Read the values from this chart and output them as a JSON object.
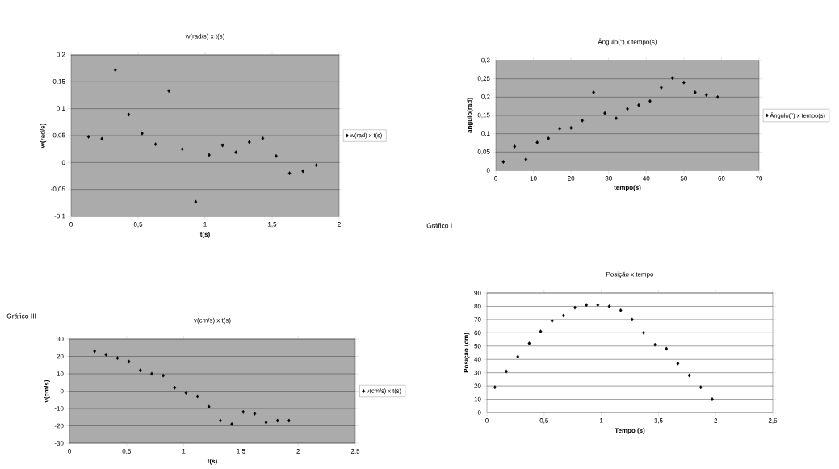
{
  "chart_data": [
    {
      "type": "scatter",
      "title": "w(rad/s) x t(s)",
      "xlabel": "t(s)",
      "ylabel": "w(rad/s)",
      "x": [
        0.13,
        0.23,
        0.33,
        0.43,
        0.53,
        0.63,
        0.73,
        0.83,
        0.93,
        1.03,
        1.13,
        1.23,
        1.33,
        1.43,
        1.53,
        1.63,
        1.73,
        1.83
      ],
      "series": [
        {
          "name": "w(rad) x t(s)",
          "color": "#000000",
          "values": [
            0.048,
            0.044,
            0.172,
            0.089,
            0.054,
            0.034,
            0.133,
            0.025,
            -0.073,
            0.014,
            0.032,
            0.019,
            0.038,
            0.045,
            0.012,
            -0.02,
            -0.016,
            -0.005
          ]
        }
      ],
      "xlim": [
        0,
        2
      ],
      "ylim": [
        -0.1,
        0.2
      ],
      "xticks": [
        0,
        {
          "value": 0.5,
          "label": "0,5"
        },
        1,
        {
          "value": 1.5,
          "label": "1,5"
        },
        2
      ],
      "yticks": [
        {
          "value": -0.1,
          "label": "-0,1"
        },
        {
          "value": -0.05,
          "label": "-0,05"
        },
        0,
        {
          "value": 0.05,
          "label": "0,05"
        },
        {
          "value": 0.1,
          "label": "0,1"
        },
        {
          "value": 0.15,
          "label": "0,15"
        },
        {
          "value": 0.2,
          "label": "0,2"
        }
      ],
      "grid": "y",
      "legend": "right",
      "marker": "diamond"
    },
    {
      "type": "scatter",
      "title": "Ângulo(°) x tempo(s)",
      "xlabel": "tempo(s)",
      "ylabel": "angulo(rad)",
      "x": [
        2,
        5,
        8,
        11,
        14,
        17,
        20,
        23,
        26,
        29,
        32,
        35,
        38,
        41,
        44,
        47,
        50,
        53,
        56,
        59
      ],
      "series": [
        {
          "name": "Ângulo(°) x tempo(s)",
          "color": "#000000",
          "values": [
            0.023,
            0.065,
            0.03,
            0.076,
            0.087,
            0.114,
            0.116,
            0.136,
            0.213,
            0.156,
            0.142,
            0.168,
            0.178,
            0.189,
            0.226,
            0.252,
            0.24,
            0.213,
            0.206,
            0.2
          ]
        }
      ],
      "xlim": [
        0,
        70
      ],
      "ylim": [
        0,
        0.3
      ],
      "xticks": [
        0,
        10,
        20,
        30,
        40,
        50,
        60,
        70
      ],
      "yticks": [
        0,
        {
          "value": 0.05,
          "label": "0,05"
        },
        {
          "value": 0.1,
          "label": "0,1"
        },
        {
          "value": 0.15,
          "label": "0,15"
        },
        {
          "value": 0.2,
          "label": "0,2"
        },
        {
          "value": 0.25,
          "label": "0,25"
        },
        {
          "value": 0.3,
          "label": "0,3"
        }
      ],
      "grid": "y",
      "legend": "right",
      "marker": "diamond"
    },
    {
      "type": "scatter",
      "title": "v(cm/s) x t(s)",
      "xlabel": "t(s)",
      "ylabel": "v(cm/s)",
      "annotations": [
        "Gráfico III"
      ],
      "x": [
        0.22,
        0.32,
        0.42,
        0.52,
        0.62,
        0.72,
        0.82,
        0.92,
        1.02,
        1.12,
        1.22,
        1.32,
        1.42,
        1.52,
        1.62,
        1.72,
        1.82,
        1.92
      ],
      "series": [
        {
          "name": "v(cm/s) x t(s)",
          "color": "#000000",
          "values": [
            23,
            21,
            19,
            17,
            12,
            10,
            9,
            2,
            -1,
            -3,
            -9,
            -17,
            -19,
            -12,
            -13,
            -18,
            -17,
            -17
          ]
        }
      ],
      "xlim": [
        0,
        2.5
      ],
      "ylim": [
        -30,
        30
      ],
      "xticks": [
        0,
        {
          "value": 0.5,
          "label": "0,5"
        },
        1,
        {
          "value": 1.5,
          "label": "1,5"
        },
        2,
        {
          "value": 2.5,
          "label": "2,5"
        }
      ],
      "yticks": [
        -30,
        -20,
        -10,
        0,
        10,
        20,
        30
      ],
      "grid": "y",
      "legend": "right",
      "marker": "diamond"
    },
    {
      "type": "scatter",
      "title": "Posição x tempo",
      "xlabel": "Tempo (s)",
      "ylabel": "Posição (cm)",
      "annotations": [
        "Gráfico I"
      ],
      "x": [
        0.07,
        0.17,
        0.27,
        0.37,
        0.47,
        0.57,
        0.67,
        0.77,
        0.87,
        0.97,
        1.07,
        1.17,
        1.27,
        1.37,
        1.47,
        1.57,
        1.67,
        1.77,
        1.87,
        1.97
      ],
      "series": [
        {
          "color": "#000000",
          "values": [
            19,
            31,
            42,
            52,
            61,
            69,
            73,
            79,
            81,
            81,
            80,
            77,
            70,
            60,
            51,
            48,
            37,
            28,
            19,
            10
          ]
        }
      ],
      "xlim": [
        0,
        2.5
      ],
      "ylim": [
        0,
        90
      ],
      "xticks": [
        0,
        {
          "value": 0.5,
          "label": "0,5"
        },
        1,
        {
          "value": 1.5,
          "label": "1,5"
        },
        2,
        {
          "value": 2.5,
          "label": "2,5"
        }
      ],
      "yticks": [
        0,
        10,
        20,
        30,
        40,
        50,
        60,
        70,
        80,
        90
      ],
      "grid": "y",
      "marker": "diamond"
    }
  ]
}
